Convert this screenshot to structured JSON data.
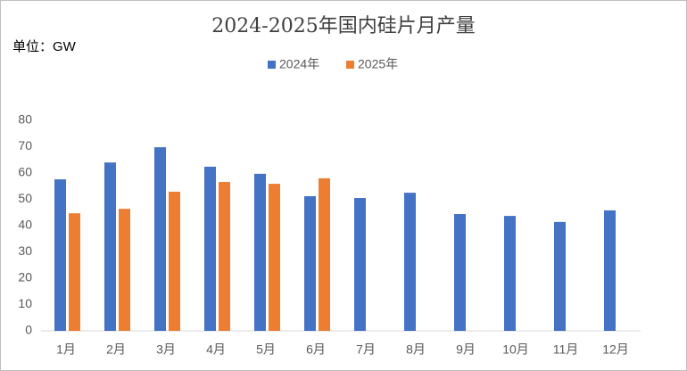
{
  "chart_data": {
    "type": "bar",
    "title": "2024-2025年国内硅片月产量",
    "unit_label": "单位：GW",
    "categories": [
      "1月",
      "2月",
      "3月",
      "4月",
      "5月",
      "6月",
      "7月",
      "8月",
      "9月",
      "10月",
      "11月",
      "12月"
    ],
    "series": [
      {
        "name": "2024年",
        "color": "#4472c4",
        "values": [
          57.6,
          64,
          69.8,
          62.4,
          59.7,
          51.2,
          50.5,
          52.5,
          44.4,
          43.7,
          41.4,
          45.8
        ]
      },
      {
        "name": "2025年",
        "color": "#ed7d31",
        "values": [
          44.7,
          46.4,
          52.9,
          56.6,
          55.9,
          58,
          null,
          null,
          null,
          null,
          null,
          null
        ]
      }
    ],
    "ylim": [
      0,
      80
    ],
    "yticks": [
      0,
      10,
      20,
      30,
      40,
      50,
      60,
      70,
      80
    ],
    "grid": false,
    "legend": "top"
  }
}
